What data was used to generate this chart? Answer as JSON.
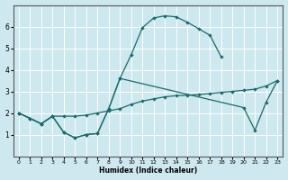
{
  "xlabel": "Humidex (Indice chaleur)",
  "background_color": "#cde8ee",
  "line_color": "#1a6b6b",
  "grid_color": "#ffffff",
  "xlim": [
    -0.5,
    23.5
  ],
  "ylim": [
    0,
    7
  ],
  "xticks": [
    0,
    1,
    2,
    3,
    4,
    5,
    6,
    7,
    8,
    9,
    10,
    11,
    12,
    13,
    14,
    15,
    16,
    17,
    18,
    19,
    20,
    21,
    22,
    23
  ],
  "yticks": [
    1,
    2,
    3,
    4,
    5,
    6
  ],
  "series1_x": [
    0,
    1,
    2,
    3,
    4,
    5,
    6,
    7,
    8,
    9,
    10,
    11,
    12,
    13,
    14,
    15,
    16,
    17,
    18
  ],
  "series1_y": [
    2.0,
    1.75,
    1.5,
    1.85,
    1.1,
    0.85,
    1.0,
    1.05,
    2.2,
    3.6,
    4.7,
    5.95,
    6.4,
    6.5,
    6.45,
    6.2,
    5.9,
    5.6,
    4.6
  ],
  "series2_x": [
    0,
    2,
    3,
    4,
    5,
    6,
    7,
    8,
    9,
    10,
    11,
    12,
    13,
    14,
    15,
    16,
    17,
    18,
    19,
    20,
    21,
    22,
    23
  ],
  "series2_y": [
    2.0,
    1.5,
    1.85,
    1.85,
    1.85,
    1.9,
    2.0,
    2.1,
    2.2,
    2.4,
    2.55,
    2.65,
    2.75,
    2.8,
    2.82,
    2.85,
    2.9,
    2.95,
    3.0,
    3.05,
    3.1,
    3.25,
    3.5
  ],
  "series3_x": [
    0,
    1,
    2,
    3,
    4,
    5,
    6,
    7,
    8,
    9,
    20,
    21,
    22,
    23
  ],
  "series3_y": [
    2.0,
    1.75,
    1.5,
    1.85,
    1.1,
    0.85,
    1.0,
    1.05,
    2.2,
    3.6,
    2.25,
    1.2,
    2.5,
    3.5
  ]
}
